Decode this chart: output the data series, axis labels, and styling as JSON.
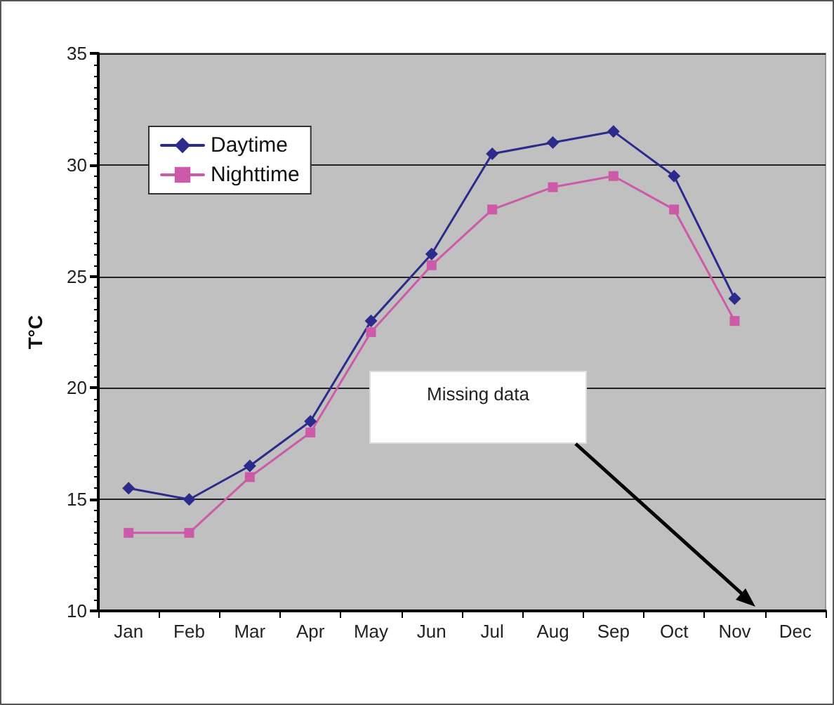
{
  "chart_data": {
    "type": "line",
    "ylabel": "T°C",
    "categories": [
      "Jan",
      "Feb",
      "Mar",
      "Apr",
      "May",
      "Jun",
      "Jul",
      "Aug",
      "Sep",
      "Oct",
      "Nov",
      "Dec"
    ],
    "series": [
      {
        "name": "Daytime",
        "color": "#2b2b8c",
        "marker": "diamond",
        "values": [
          15.5,
          15,
          16.5,
          18.5,
          23,
          26,
          30.5,
          31,
          31.5,
          29.5,
          24,
          null
        ]
      },
      {
        "name": "Nighttime",
        "color": "#cc5aa8",
        "marker": "square",
        "values": [
          13.5,
          13.5,
          16,
          18,
          22.5,
          25.5,
          28,
          29,
          29.5,
          28,
          23,
          null
        ]
      }
    ],
    "ylim": [
      10,
      35
    ],
    "yticks": [
      10,
      15,
      20,
      25,
      30,
      35
    ],
    "grid": "y",
    "legend": "top left",
    "line_style": "solid",
    "annotations": [
      "Missing data"
    ]
  }
}
